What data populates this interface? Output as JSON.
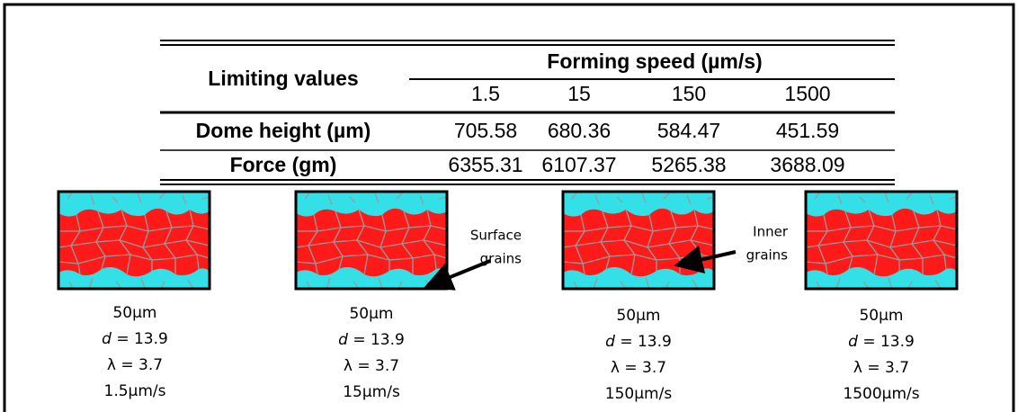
{
  "table": {
    "row_header": "Limiting values",
    "group_header": "Forming speed (µm/s)",
    "columns": [
      "1.5",
      "15",
      "150",
      "1500"
    ],
    "rows": [
      {
        "label": "Dome height (µm)",
        "values": [
          "705.58",
          "680.36",
          "584.47",
          "451.59"
        ]
      },
      {
        "label": "Force (gm)",
        "values": [
          "6355.31",
          "6107.37",
          "5265.38",
          "3688.09"
        ]
      }
    ]
  },
  "panels": [
    {
      "scale": "50µm",
      "d_symbol": "d",
      "d_text": " = 13.9",
      "lambda_text": "λ = 3.7",
      "speed": "1.5µm/s"
    },
    {
      "scale": "50µm",
      "d_symbol": "d",
      "d_text": " = 13.9",
      "lambda_text": "λ = 3.7",
      "speed": "15µm/s"
    },
    {
      "scale": "50µm",
      "d_symbol": "d",
      "d_text": " = 13.9",
      "lambda_text": "λ = 3.7",
      "speed": "150µm/s"
    },
    {
      "scale": "50µm",
      "d_symbol": "d",
      "d_text": " = 13.9",
      "lambda_text": "λ = 3.7",
      "speed": "1500µm/s"
    }
  ],
  "annotations": [
    {
      "lines": [
        "Surface",
        "grains"
      ]
    },
    {
      "lines": [
        "Inner",
        "grains"
      ]
    }
  ]
}
